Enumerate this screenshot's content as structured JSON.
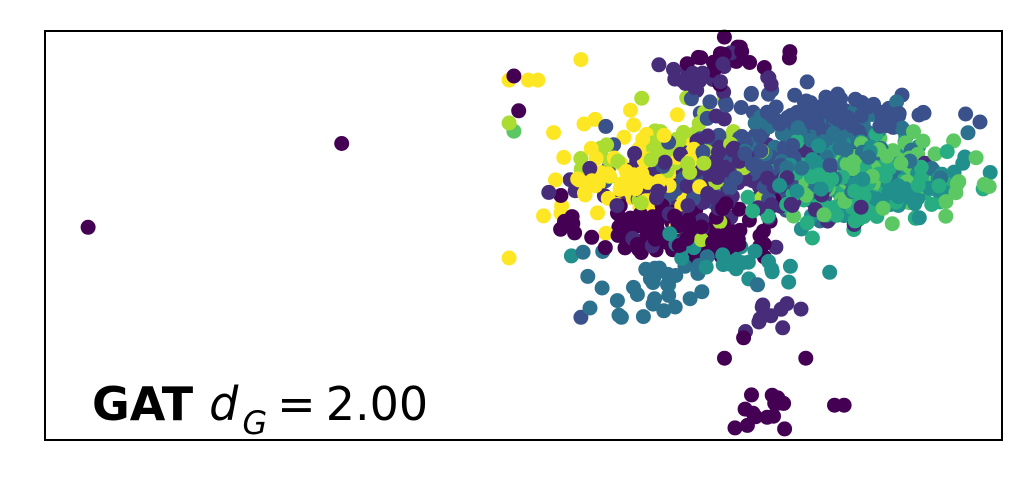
{
  "chart_data": {
    "type": "scatter",
    "title": "",
    "xlabel": "",
    "ylabel": "",
    "xlim": [
      0,
      100
    ],
    "ylim": [
      0,
      100
    ],
    "grid": false,
    "ticks": false,
    "annotation": {
      "model": "GAT",
      "symbol": "d",
      "subscript": "G",
      "equals": "=",
      "value": "2.00"
    },
    "colormap": "viridis",
    "class_colors": [
      "#440154",
      "#472c7a",
      "#3b518b",
      "#2c718e",
      "#21908d",
      "#27ad81",
      "#5cc863",
      "#aadc32",
      "#fde725"
    ],
    "clusters": [
      {
        "class": 0,
        "x": 66,
        "y": 52,
        "sx": 5.0,
        "sy": 4.0,
        "n": 130
      },
      {
        "class": 1,
        "x": 71,
        "y": 63,
        "sx": 6.5,
        "sy": 6.0,
        "n": 170
      },
      {
        "class": 2,
        "x": 74,
        "y": 68,
        "sx": 6.0,
        "sy": 5.5,
        "n": 130
      },
      {
        "class": 2,
        "x": 83,
        "y": 80,
        "sx": 5.0,
        "sy": 2.5,
        "n": 110
      },
      {
        "class": 3,
        "x": 82,
        "y": 70,
        "sx": 5.0,
        "sy": 5.0,
        "n": 130
      },
      {
        "class": 4,
        "x": 86,
        "y": 64,
        "sx": 4.5,
        "sy": 5.0,
        "n": 120
      },
      {
        "class": 5,
        "x": 85,
        "y": 62,
        "sx": 5.0,
        "sy": 4.5,
        "n": 160
      },
      {
        "class": 6,
        "x": 87,
        "y": 65,
        "sx": 4.0,
        "sy": 4.5,
        "n": 120
      },
      {
        "class": 7,
        "x": 66,
        "y": 68,
        "sx": 4.5,
        "sy": 7.0,
        "n": 80
      },
      {
        "class": 8,
        "x": 62,
        "y": 65,
        "sx": 4.0,
        "sy": 6.0,
        "n": 90
      },
      {
        "class": 3,
        "x": 64,
        "y": 38,
        "sx": 4.0,
        "sy": 5.0,
        "n": 35
      },
      {
        "class": 4,
        "x": 72,
        "y": 44,
        "sx": 4.0,
        "sy": 3.0,
        "n": 25
      },
      {
        "class": 1,
        "x": 76,
        "y": 30,
        "sx": 2.0,
        "sy": 3.0,
        "n": 8
      },
      {
        "class": 0,
        "x": 75,
        "y": 7,
        "sx": 1.5,
        "sy": 2.5,
        "n": 14
      },
      {
        "class": 0,
        "x": 72,
        "y": 93,
        "sx": 3.0,
        "sy": 2.0,
        "n": 18
      },
      {
        "class": 1,
        "x": 69,
        "y": 88,
        "sx": 4.0,
        "sy": 2.0,
        "n": 20
      }
    ],
    "outliers": [
      {
        "class": 0,
        "x": 4.5,
        "y": 52
      },
      {
        "class": 0,
        "x": 31,
        "y": 72.5
      },
      {
        "class": 0,
        "x": 49,
        "y": 89
      },
      {
        "class": 0,
        "x": 49.5,
        "y": 80.5
      },
      {
        "class": 8,
        "x": 48.5,
        "y": 88
      },
      {
        "class": 8,
        "x": 50.5,
        "y": 88
      },
      {
        "class": 8,
        "x": 51.5,
        "y": 88
      },
      {
        "class": 8,
        "x": 56,
        "y": 93
      },
      {
        "class": 7,
        "x": 48.5,
        "y": 77.5
      },
      {
        "class": 6,
        "x": 49,
        "y": 75.5
      },
      {
        "class": 8,
        "x": 48.5,
        "y": 44.5
      },
      {
        "class": 4,
        "x": 55,
        "y": 45
      },
      {
        "class": 2,
        "x": 56,
        "y": 30
      },
      {
        "class": 0,
        "x": 73,
        "y": 25
      },
      {
        "class": 0,
        "x": 71,
        "y": 20
      },
      {
        "class": 0,
        "x": 79.5,
        "y": 20
      },
      {
        "class": 0,
        "x": 82.5,
        "y": 8.5
      },
      {
        "class": 0,
        "x": 83.5,
        "y": 8.5
      },
      {
        "class": 1,
        "x": 79,
        "y": 32
      },
      {
        "class": 1,
        "x": 75,
        "y": 33
      },
      {
        "class": 4,
        "x": 95,
        "y": 65.5
      },
      {
        "class": 4,
        "x": 82,
        "y": 41
      }
    ]
  }
}
